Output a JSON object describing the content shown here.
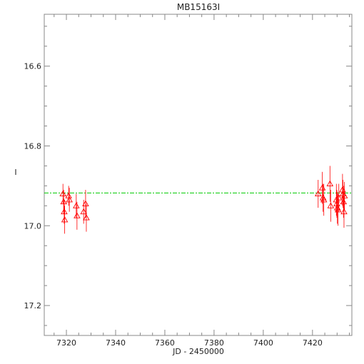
{
  "chart_data": {
    "type": "scatter",
    "title": "MB15163I",
    "xlabel": "JD - 2450000",
    "ylabel": "I",
    "xlim": [
      7311,
      7436
    ],
    "ylim": [
      17.275,
      16.47
    ],
    "y_inverted": true,
    "xticks": [
      7320,
      7340,
      7360,
      7380,
      7400,
      7420
    ],
    "yticks": [
      16.6,
      16.8,
      17.0,
      17.2
    ],
    "ytick_labels": [
      "16.6",
      "16.8",
      "17.0",
      "17.2"
    ],
    "grid": false,
    "reference_line": {
      "y": 16.918,
      "color": "#00cc00",
      "style": "dashed"
    },
    "marker": "triangle-open",
    "color": "#ff0000",
    "points": [
      {
        "x": 7318.6,
        "y": 16.92,
        "err": 0.025
      },
      {
        "x": 7318.9,
        "y": 16.94,
        "err": 0.03
      },
      {
        "x": 7319.1,
        "y": 16.965,
        "err": 0.03
      },
      {
        "x": 7319.3,
        "y": 16.985,
        "err": 0.035
      },
      {
        "x": 7320.9,
        "y": 16.925,
        "err": 0.025
      },
      {
        "x": 7321.2,
        "y": 16.935,
        "err": 0.03
      },
      {
        "x": 7324.0,
        "y": 16.95,
        "err": 0.03
      },
      {
        "x": 7324.3,
        "y": 16.975,
        "err": 0.035
      },
      {
        "x": 7327.0,
        "y": 16.965,
        "err": 0.03
      },
      {
        "x": 7327.8,
        "y": 16.945,
        "err": 0.035
      },
      {
        "x": 7328.1,
        "y": 16.98,
        "err": 0.035
      },
      {
        "x": 7422.3,
        "y": 16.92,
        "err": 0.035
      },
      {
        "x": 7424.0,
        "y": 16.905,
        "err": 0.04
      },
      {
        "x": 7424.3,
        "y": 16.93,
        "err": 0.035
      },
      {
        "x": 7424.6,
        "y": 16.935,
        "err": 0.04
      },
      {
        "x": 7427.1,
        "y": 16.895,
        "err": 0.045
      },
      {
        "x": 7427.4,
        "y": 16.95,
        "err": 0.04
      },
      {
        "x": 7429.7,
        "y": 16.935,
        "err": 0.04
      },
      {
        "x": 7429.9,
        "y": 16.945,
        "err": 0.035
      },
      {
        "x": 7430.1,
        "y": 16.955,
        "err": 0.04
      },
      {
        "x": 7430.4,
        "y": 16.96,
        "err": 0.04
      },
      {
        "x": 7430.7,
        "y": 16.93,
        "err": 0.035
      },
      {
        "x": 7432.2,
        "y": 16.91,
        "err": 0.04
      },
      {
        "x": 7432.4,
        "y": 16.92,
        "err": 0.035
      },
      {
        "x": 7432.6,
        "y": 16.94,
        "err": 0.04
      },
      {
        "x": 7432.8,
        "y": 16.965,
        "err": 0.04
      },
      {
        "x": 7433.0,
        "y": 16.925,
        "err": 0.035
      }
    ]
  }
}
